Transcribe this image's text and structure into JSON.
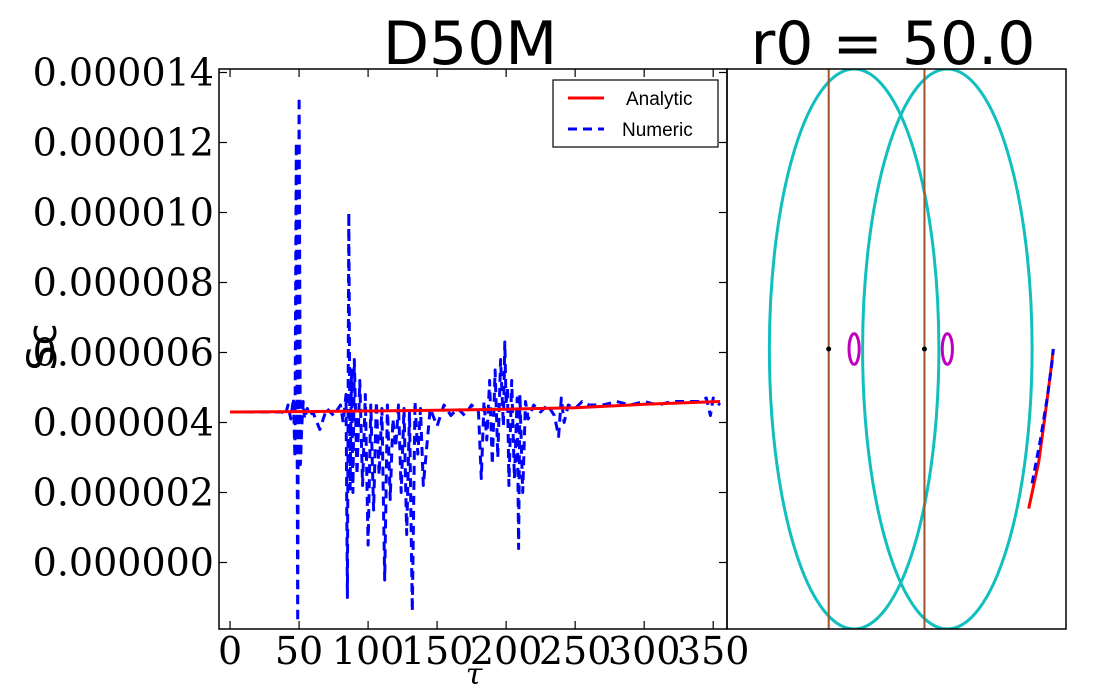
{
  "chart_data": [
    {
      "type": "line",
      "title": "D50M",
      "xlabel": "τ",
      "ylabel": "Sc",
      "xlim": [
        -8,
        360
      ],
      "ylim": [
        -1.9e-06,
        1.41e-05
      ],
      "xticks": [
        0,
        50,
        100,
        150,
        200,
        250,
        300,
        350
      ],
      "xtick_labels": [
        "0",
        "50",
        "100",
        "150",
        "200",
        "250",
        "300",
        "350"
      ],
      "yticks": [
        0.0,
        2e-06,
        4e-06,
        6e-06,
        8e-06,
        1e-05,
        1.2e-05,
        1.4e-05
      ],
      "ytick_labels": [
        "0.000000",
        "0.000002",
        "0.000004",
        "0.000006",
        "0.000008",
        "0.000010",
        "0.000012",
        "0.000014"
      ],
      "legend_position": "top-right",
      "series": [
        {
          "name": "Analytic",
          "color": "#ff0000",
          "style": "solid",
          "x": [
            0,
            50,
            100,
            150,
            200,
            250,
            300,
            355
          ],
          "y": [
            4.3e-06,
            4.31e-06,
            4.33e-06,
            4.35e-06,
            4.38e-06,
            4.42e-06,
            4.52e-06,
            4.6e-06
          ]
        },
        {
          "name": "Numeric",
          "color": "#0000ff",
          "style": "dashed",
          "x": [
            0,
            30,
            38,
            40,
            42,
            44,
            46,
            47,
            48,
            49,
            50,
            51,
            52,
            53,
            54,
            56,
            58,
            60,
            65,
            70,
            75,
            80,
            82,
            84,
            85,
            86,
            87,
            88,
            89,
            90,
            92,
            94,
            96,
            98,
            100,
            102,
            104,
            106,
            108,
            110,
            112,
            114,
            116,
            118,
            120,
            122,
            124,
            126,
            128,
            130,
            132,
            134,
            136,
            138,
            140,
            145,
            150,
            155,
            160,
            165,
            170,
            175,
            180,
            182,
            184,
            186,
            188,
            190,
            192,
            194,
            196,
            198,
            199,
            200,
            201,
            202,
            204,
            206,
            208,
            209,
            210,
            212,
            214,
            216,
            220,
            225,
            230,
            235,
            238,
            240,
            242,
            245,
            250,
            255,
            260,
            270,
            280,
            290,
            300,
            310,
            320,
            330,
            340,
            345,
            348,
            350,
            352,
            355
          ],
          "y": [
            4.3e-06,
            4.3e-06,
            4.3e-06,
            4.2e-06,
            4.5e-06,
            4.1e-06,
            4.7e-06,
            3e-06,
            1.2e-05,
            -1.7e-06,
            1.33e-05,
            2.8e-06,
            3.9e-06,
            4.6e-06,
            4.1e-06,
            4.4e-06,
            4.2e-06,
            4.3e-06,
            3.8e-06,
            4.4e-06,
            4.2e-06,
            4.5e-06,
            4e-06,
            4.8e-06,
            -1e-06,
            1e-05,
            2.1e-06,
            5.5e-06,
            2e-06,
            5.8e-06,
            2.5e-06,
            5.2e-06,
            2.2e-06,
            4.8e-06,
            5e-07,
            4.5e-06,
            1.5e-06,
            4.6e-06,
            2.5e-06,
            4.4e-06,
            -5e-07,
            4.5e-06,
            1.8e-06,
            4.1e-06,
            3.3e-06,
            4.5e-06,
            2e-06,
            4.4e-06,
            8e-07,
            4.3e-06,
            -1.4e-06,
            4.6e-06,
            3.1e-06,
            4.4e-06,
            2.2e-06,
            4.4e-06,
            3.9e-06,
            4.5e-06,
            4.2e-06,
            4.4e-06,
            4.2e-06,
            4.5e-06,
            4.3e-06,
            2.4e-06,
            4.6e-06,
            3.5e-06,
            5.2e-06,
            2.8e-06,
            5.5e-06,
            3e-06,
            5.8e-06,
            3.9e-06,
            6.3e-06,
            4.5e-06,
            5e-06,
            2.2e-06,
            5.2e-06,
            2.4e-06,
            4.7e-06,
            4e-07,
            4.8e-06,
            2e-06,
            4.6e-06,
            4.1e-06,
            4.5e-06,
            4.3e-06,
            4.5e-06,
            4.2e-06,
            3.6e-06,
            4.7e-06,
            4e-06,
            4.5e-06,
            4.4e-06,
            4.6e-06,
            4.5e-06,
            4.5e-06,
            4.6e-06,
            4.5e-06,
            4.6e-06,
            4.5e-06,
            4.6e-06,
            4.6e-06,
            4.6e-06,
            4.7e-06,
            4.2e-06,
            4.7e-06,
            4.6e-06,
            4.5e-06
          ]
        }
      ]
    },
    {
      "type": "line",
      "title": "r0 = 50.0",
      "xlim": [
        -1,
        1
      ],
      "ylim": [
        -1,
        1
      ],
      "ellipses": [
        {
          "cx": -0.25,
          "cy": 0,
          "rx": 0.5,
          "ry": 1,
          "color": "#11bfbf"
        },
        {
          "cx": 0.3,
          "cy": 0,
          "rx": 0.5,
          "ry": 1,
          "color": "#11bfbf"
        },
        {
          "cx": -0.25,
          "cy": 0.0,
          "rx": 0.03,
          "ry": 0.055,
          "color": "#bf00bf"
        },
        {
          "cx": 0.3,
          "cy": 0.0,
          "rx": 0.03,
          "ry": 0.055,
          "color": "#bf00bf"
        }
      ],
      "vertical_lines": [
        {
          "x": -0.4,
          "color": "#a0522d"
        },
        {
          "x": 0.165,
          "color": "#a0522d"
        }
      ],
      "points": [
        {
          "x": -0.4,
          "y": 0.0
        },
        {
          "x": 0.165,
          "y": 0.0
        }
      ],
      "series": [
        {
          "name": "Analytic",
          "color": "#ff0000",
          "style": "solid",
          "x": [
            0.78,
            0.84,
            0.88,
            0.91,
            0.925
          ],
          "y": [
            -0.57,
            -0.4,
            -0.22,
            -0.08,
            0.0
          ]
        },
        {
          "name": "Numeric",
          "color": "#0000ff",
          "style": "dashed",
          "x": [
            0.8,
            0.85,
            0.89,
            0.915,
            0.925
          ],
          "y": [
            -0.48,
            -0.32,
            -0.17,
            -0.06,
            0.0
          ]
        }
      ]
    }
  ]
}
